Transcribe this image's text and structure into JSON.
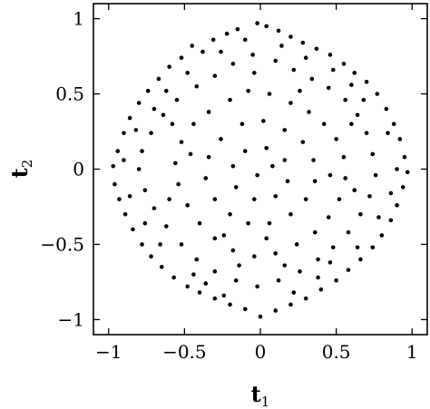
{
  "chart_data": {
    "type": "scatter",
    "xlabel": "t",
    "xlabel_sub": "1",
    "ylabel": "t",
    "ylabel_sub": "2",
    "xlim": [
      -1.1,
      1.1
    ],
    "ylim": [
      -1.1,
      1.1
    ],
    "x_ticks": [
      -1,
      -0.5,
      0,
      0.5,
      1
    ],
    "x_tick_labels": [
      "−1",
      "−0.5",
      "0",
      "0.5",
      "1"
    ],
    "y_ticks": [
      1,
      0.5,
      0,
      -0.5,
      -1
    ],
    "y_tick_labels": [
      "1",
      "0.5",
      "0",
      "−0.5",
      "−1"
    ],
    "grid": false,
    "legend": "none",
    "marker_color": "#000000",
    "points": [
      [
        -0.45,
        0.82
      ],
      [
        -0.38,
        0.78
      ],
      [
        -0.52,
        0.74
      ],
      [
        -0.31,
        0.86
      ],
      [
        -0.22,
        0.9
      ],
      [
        -0.15,
        0.93
      ],
      [
        -0.02,
        0.97
      ],
      [
        0.04,
        0.95
      ],
      [
        0.12,
        0.92
      ],
      [
        0.2,
        0.88
      ],
      [
        0.28,
        0.84
      ],
      [
        0.37,
        0.8
      ],
      [
        0.46,
        0.76
      ],
      [
        0.55,
        0.7
      ],
      [
        0.62,
        0.64
      ],
      [
        0.7,
        0.58
      ],
      [
        -0.6,
        0.68
      ],
      [
        -0.67,
        0.6
      ],
      [
        -0.74,
        0.52
      ],
      [
        -0.8,
        0.44
      ],
      [
        -0.86,
        0.34
      ],
      [
        -0.9,
        0.24
      ],
      [
        -0.94,
        0.12
      ],
      [
        -0.97,
        0.02
      ],
      [
        -0.96,
        -0.1
      ],
      [
        -0.93,
        -0.2
      ],
      [
        -0.89,
        -0.3
      ],
      [
        -0.84,
        -0.4
      ],
      [
        -0.78,
        -0.5
      ],
      [
        -0.72,
        -0.58
      ],
      [
        -0.65,
        -0.65
      ],
      [
        -0.57,
        -0.72
      ],
      [
        -0.48,
        -0.78
      ],
      [
        -0.4,
        -0.82
      ],
      [
        -0.3,
        -0.86
      ],
      [
        -0.2,
        -0.9
      ],
      [
        -0.1,
        -0.93
      ],
      [
        0.0,
        -0.98
      ],
      [
        0.1,
        -0.94
      ],
      [
        0.2,
        -0.9
      ],
      [
        0.3,
        -0.86
      ],
      [
        0.4,
        -0.8
      ],
      [
        0.5,
        -0.74
      ],
      [
        0.58,
        -0.67
      ],
      [
        0.66,
        -0.6
      ],
      [
        0.74,
        -0.52
      ],
      [
        0.8,
        -0.44
      ],
      [
        0.86,
        -0.34
      ],
      [
        0.9,
        -0.24
      ],
      [
        0.94,
        -0.12
      ],
      [
        0.97,
        -0.02
      ],
      [
        0.95,
        0.08
      ],
      [
        0.92,
        0.2
      ],
      [
        0.88,
        0.3
      ],
      [
        0.83,
        0.4
      ],
      [
        0.77,
        0.5
      ],
      [
        -0.3,
        0.62
      ],
      [
        -0.18,
        0.7
      ],
      [
        -0.05,
        0.76
      ],
      [
        0.1,
        0.72
      ],
      [
        0.22,
        0.66
      ],
      [
        0.34,
        0.6
      ],
      [
        0.45,
        0.54
      ],
      [
        0.56,
        0.46
      ],
      [
        -0.42,
        0.55
      ],
      [
        -0.55,
        0.46
      ],
      [
        -0.64,
        0.36
      ],
      [
        -0.72,
        0.24
      ],
      [
        -0.78,
        0.12
      ],
      [
        -0.8,
        0.0
      ],
      [
        -0.76,
        -0.14
      ],
      [
        -0.7,
        -0.26
      ],
      [
        -0.62,
        -0.38
      ],
      [
        -0.52,
        -0.5
      ],
      [
        -0.42,
        -0.6
      ],
      [
        -0.3,
        -0.68
      ],
      [
        -0.16,
        -0.74
      ],
      [
        -0.02,
        -0.78
      ],
      [
        0.12,
        -0.74
      ],
      [
        0.26,
        -0.68
      ],
      [
        0.38,
        -0.6
      ],
      [
        0.48,
        -0.52
      ],
      [
        0.58,
        -0.42
      ],
      [
        0.66,
        -0.3
      ],
      [
        0.72,
        -0.18
      ],
      [
        0.76,
        -0.04
      ],
      [
        0.74,
        0.1
      ],
      [
        0.7,
        0.24
      ],
      [
        0.64,
        0.36
      ],
      [
        -0.2,
        0.46
      ],
      [
        -0.08,
        0.52
      ],
      [
        0.06,
        0.5
      ],
      [
        0.2,
        0.44
      ],
      [
        0.32,
        0.38
      ],
      [
        0.42,
        0.3
      ],
      [
        0.5,
        0.2
      ],
      [
        0.55,
        0.08
      ],
      [
        0.56,
        -0.06
      ],
      [
        0.52,
        -0.2
      ],
      [
        0.45,
        -0.32
      ],
      [
        0.36,
        -0.42
      ],
      [
        0.24,
        -0.5
      ],
      [
        0.1,
        -0.56
      ],
      [
        -0.04,
        -0.58
      ],
      [
        -0.18,
        -0.54
      ],
      [
        -0.3,
        -0.46
      ],
      [
        -0.4,
        -0.36
      ],
      [
        -0.48,
        -0.24
      ],
      [
        -0.54,
        -0.1
      ],
      [
        -0.56,
        0.04
      ],
      [
        -0.52,
        0.18
      ],
      [
        -0.44,
        0.3
      ],
      [
        -0.34,
        0.38
      ],
      [
        -0.12,
        0.3
      ],
      [
        0.02,
        0.32
      ],
      [
        0.16,
        0.26
      ],
      [
        0.28,
        0.18
      ],
      [
        0.35,
        0.06
      ],
      [
        0.36,
        -0.08
      ],
      [
        0.3,
        -0.2
      ],
      [
        0.2,
        -0.3
      ],
      [
        0.06,
        -0.36
      ],
      [
        -0.08,
        -0.36
      ],
      [
        -0.2,
        -0.3
      ],
      [
        -0.3,
        -0.2
      ],
      [
        -0.36,
        -0.06
      ],
      [
        -0.34,
        0.08
      ],
      [
        -0.26,
        0.2
      ],
      [
        -0.1,
        0.12
      ],
      [
        0.04,
        0.14
      ],
      [
        0.16,
        0.06
      ],
      [
        0.18,
        -0.08
      ],
      [
        0.1,
        -0.18
      ],
      [
        -0.04,
        -0.2
      ],
      [
        -0.16,
        -0.12
      ],
      [
        -0.18,
        0.02
      ],
      [
        -0.02,
        -0.04
      ],
      [
        0.08,
        0.02
      ],
      [
        -0.62,
        0.52
      ],
      [
        -0.48,
        0.64
      ],
      [
        0.48,
        0.66
      ],
      [
        0.6,
        0.56
      ],
      [
        -0.86,
        -0.18
      ],
      [
        -0.82,
        0.26
      ],
      [
        0.84,
        0.24
      ],
      [
        0.86,
        -0.16
      ],
      [
        -0.66,
        -0.5
      ],
      [
        0.64,
        -0.52
      ],
      [
        -0.36,
        -0.76
      ],
      [
        0.38,
        -0.72
      ],
      [
        -0.1,
        0.86
      ],
      [
        0.14,
        0.82
      ],
      [
        -0.9,
        0.06
      ],
      [
        0.9,
        0.0
      ],
      [
        -0.24,
        -0.84
      ],
      [
        0.22,
        -0.82
      ],
      [
        -0.58,
        0.3
      ],
      [
        0.6,
        0.3
      ],
      [
        -0.6,
        -0.2
      ],
      [
        0.62,
        -0.14
      ],
      [
        -0.7,
        0.4
      ],
      [
        0.68,
        0.46
      ],
      [
        -0.44,
        -0.7
      ],
      [
        0.46,
        -0.62
      ],
      [
        -0.26,
        0.78
      ],
      [
        0.3,
        0.74
      ],
      [
        -0.76,
        -0.36
      ],
      [
        0.78,
        -0.32
      ],
      [
        -0.14,
        -0.64
      ],
      [
        0.16,
        -0.64
      ],
      [
        -0.46,
        0.1
      ],
      [
        0.46,
        -0.04
      ],
      [
        -0.24,
        -0.44
      ],
      [
        0.26,
        0.52
      ],
      [
        -0.04,
        0.64
      ],
      [
        0.04,
        -0.46
      ]
    ]
  }
}
